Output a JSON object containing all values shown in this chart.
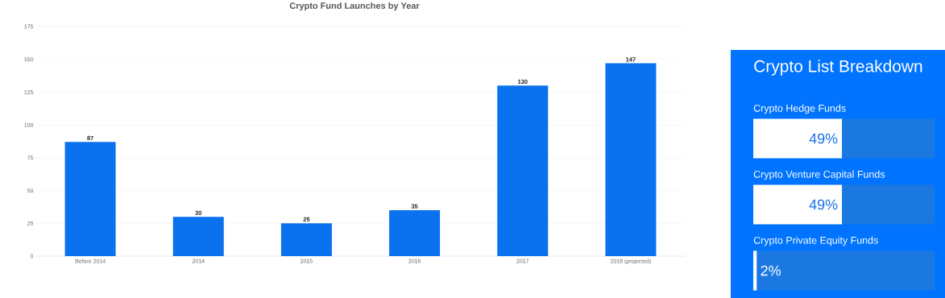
{
  "chart_data": [
    {
      "type": "bar",
      "title": "Crypto Fund Launches by Year",
      "categories": [
        "Before 2014",
        "2014",
        "2015",
        "2016",
        "2017",
        "2018 (projected)"
      ],
      "values": [
        87,
        30,
        25,
        35,
        130,
        147
      ],
      "color": "#0a72ee",
      "ylim": [
        0,
        175
      ],
      "yticks": [
        0,
        25,
        50,
        75,
        100,
        125,
        150,
        175
      ],
      "grid": "y",
      "data_labels": true
    },
    {
      "type": "bar",
      "orientation": "horizontal",
      "stacked": true,
      "title": "Crypto List Breakdown",
      "categories": [
        "Crypto Hedge Funds",
        "Crypto Venture Capital Funds",
        "Crypto Private Equity Funds"
      ],
      "series": [
        {
          "color": "#ffffff",
          "values": [
            49,
            49,
            2
          ],
          "value_labels": [
            "49%",
            "49%",
            "2%"
          ]
        },
        {
          "color": "#1a78e0",
          "values": [
            51,
            51,
            98
          ]
        }
      ]
    }
  ]
}
